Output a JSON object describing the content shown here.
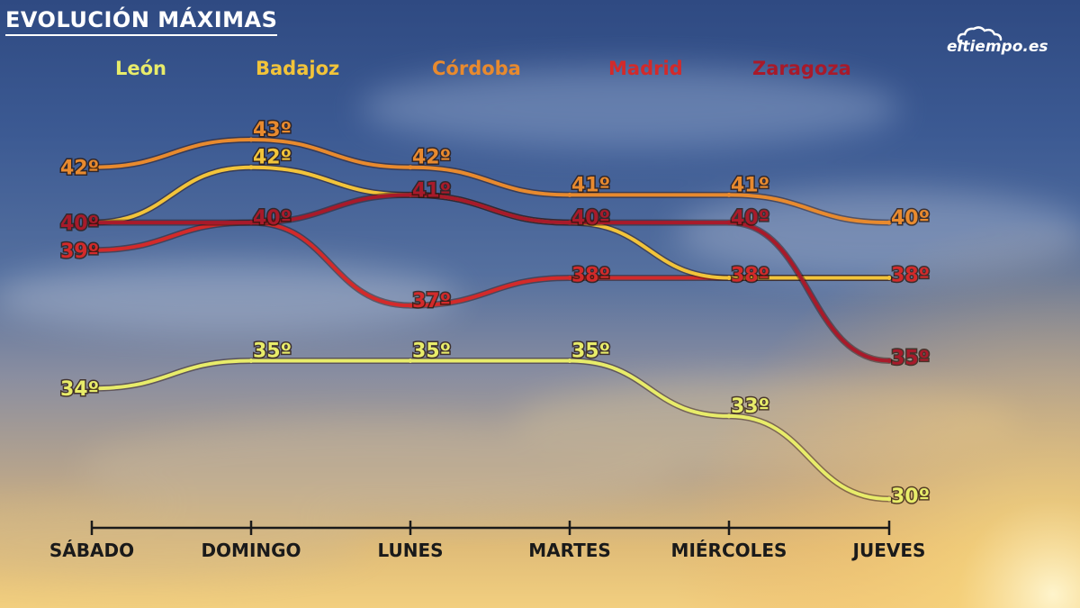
{
  "title": "EVOLUCIÓN MÁXIMAS",
  "brand": "eltiempo.es",
  "colors": {
    "leon": "#e8ec6a",
    "badajoz": "#f2c43a",
    "cordoba": "#e88a2e",
    "madrid": "#d32a2a",
    "zaragoza": "#a81a2a"
  },
  "chart_data": {
    "type": "line",
    "title": "EVOLUCIÓN MÁXIMAS",
    "categories": [
      "SÁBADO",
      "DOMINGO",
      "LUNES",
      "MARTES",
      "MIÉRCOLES",
      "JUEVES"
    ],
    "unit": "º",
    "ylim": [
      29,
      44
    ],
    "grid": false,
    "legend": "top",
    "series": [
      {
        "name": "León",
        "key": "leon",
        "values": [
          34,
          35,
          35,
          35,
          33,
          30
        ]
      },
      {
        "name": "Badajoz",
        "key": "badajoz",
        "values": [
          40,
          42,
          41,
          40,
          38,
          38
        ]
      },
      {
        "name": "Córdoba",
        "key": "cordoba",
        "values": [
          42,
          43,
          42,
          41,
          41,
          40
        ]
      },
      {
        "name": "Madrid",
        "key": "madrid",
        "values": [
          39,
          40,
          37,
          38,
          38,
          38
        ]
      },
      {
        "name": "Zaragoza",
        "key": "zaragoza",
        "values": [
          40,
          40,
          41,
          40,
          40,
          35
        ]
      }
    ],
    "point_labels": [
      {
        "series": "cordoba",
        "index": 0,
        "text": "42º"
      },
      {
        "series": "cordoba",
        "index": 1,
        "text": "43º"
      },
      {
        "series": "cordoba",
        "index": 2,
        "text": "42º"
      },
      {
        "series": "cordoba",
        "index": 3,
        "text": "41º"
      },
      {
        "series": "cordoba",
        "index": 4,
        "text": "41º"
      },
      {
        "series": "cordoba",
        "index": 5,
        "text": "40º"
      },
      {
        "series": "badajoz",
        "index": 1,
        "text": "42º"
      },
      {
        "series": "zaragoza",
        "index": 0,
        "text": "40º"
      },
      {
        "series": "zaragoza",
        "index": 1,
        "text": "40º"
      },
      {
        "series": "zaragoza",
        "index": 2,
        "text": "41º"
      },
      {
        "series": "zaragoza",
        "index": 3,
        "text": "40º"
      },
      {
        "series": "zaragoza",
        "index": 4,
        "text": "40º"
      },
      {
        "series": "zaragoza",
        "index": 5,
        "text": "35º"
      },
      {
        "series": "madrid",
        "index": 0,
        "text": "39º"
      },
      {
        "series": "madrid",
        "index": 2,
        "text": "37º"
      },
      {
        "series": "madrid",
        "index": 3,
        "text": "38º"
      },
      {
        "series": "madrid",
        "index": 4,
        "text": "38º"
      },
      {
        "series": "madrid",
        "index": 5,
        "text": "38º"
      },
      {
        "series": "leon",
        "index": 0,
        "text": "34º"
      },
      {
        "series": "leon",
        "index": 1,
        "text": "35º"
      },
      {
        "series": "leon",
        "index": 2,
        "text": "35º"
      },
      {
        "series": "leon",
        "index": 3,
        "text": "35º"
      },
      {
        "series": "leon",
        "index": 4,
        "text": "33º"
      },
      {
        "series": "leon",
        "index": 5,
        "text": "30º"
      }
    ]
  }
}
